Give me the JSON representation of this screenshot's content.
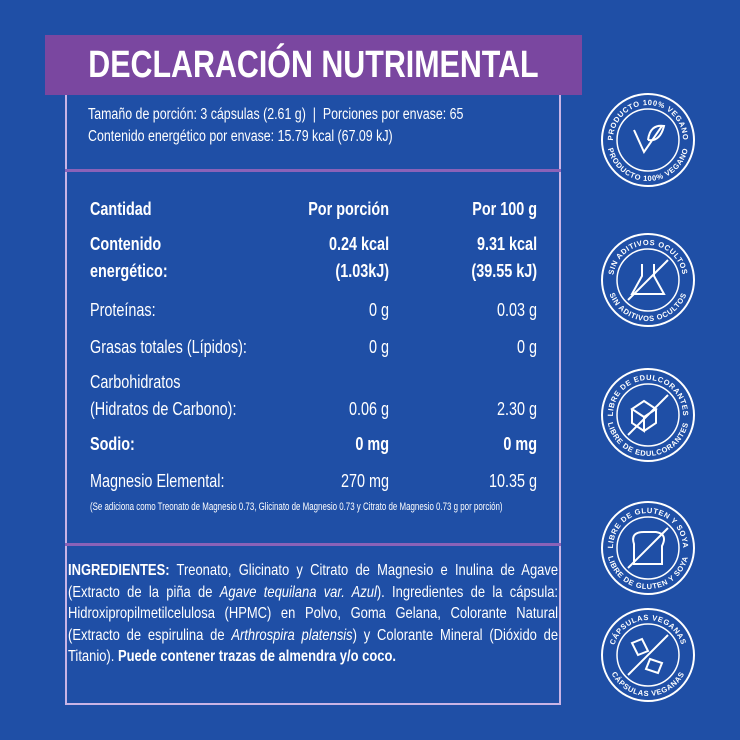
{
  "header": {
    "title": "DECLARACIÓN NUTRIMENTAL",
    "serving_line": "Tamaño de porción: 3 cápsulas (2.61 g)  |  Porciones por envase: 65",
    "energy_line": "Contenido energético por envase: 15.79 kcal (67.09 kJ)"
  },
  "table": {
    "columns": [
      "Cantidad",
      "Por porción",
      "Por 100 g"
    ],
    "rows": [
      {
        "label": [
          "Contenido",
          "energético:"
        ],
        "per_serving": [
          "0.24 kcal",
          "(1.03kJ)"
        ],
        "per_100g": [
          "9.31 kcal",
          "(39.55 kJ)"
        ],
        "bold": true
      },
      {
        "label": [
          "Proteínas:"
        ],
        "per_serving": [
          "0 g"
        ],
        "per_100g": [
          "0.03 g"
        ],
        "bold": false
      },
      {
        "label": [
          "Grasas totales (Lípidos):"
        ],
        "per_serving": [
          "0 g"
        ],
        "per_100g": [
          "0 g"
        ],
        "bold": false
      },
      {
        "label": [
          "Carbohidratos",
          "(Hidratos de Carbono):"
        ],
        "per_serving": [
          "0.06 g"
        ],
        "per_100g": [
          "2.30 g"
        ],
        "bold": false
      },
      {
        "label": [
          "Sodio:"
        ],
        "per_serving": [
          "0 mg"
        ],
        "per_100g": [
          "0 mg"
        ],
        "bold": true
      },
      {
        "label": [
          "Magnesio Elemental:"
        ],
        "per_serving": [
          "270 mg"
        ],
        "per_100g": [
          "10.35 g"
        ],
        "bold": false
      }
    ],
    "note": "(Se adiciona como Treonato de Magnesio 0.73, Glicinato de Magnesio 0.73 y Citrato de Magnesio 0.73 g por porción)"
  },
  "ingredients": {
    "lines": [
      [
        {
          "text": "INGREDIENTES:",
          "style": "bold"
        },
        {
          "text": " Treonato, Glicinato y Citrato de Magnesio e Inulina de Agave",
          "style": "normal"
        }
      ],
      [
        {
          "text": "(Extracto de la piña de ",
          "style": "normal"
        },
        {
          "text": "Agave tequilana var. Azul",
          "style": "italic"
        },
        {
          "text": "). Ingredientes de la cápsula:",
          "style": "normal"
        }
      ],
      [
        {
          "text": "Hidroxipropilmetilcelulosa (HPMC) en Polvo, Goma Gelana, Colorante Natural",
          "style": "normal"
        }
      ],
      [
        {
          "text": "(Extracto de espirulina de ",
          "style": "normal"
        },
        {
          "text": "Arthrospira platensis",
          "style": "italic"
        },
        {
          "text": ") y Colorante Mineral (Dióxido de",
          "style": "normal"
        }
      ],
      [
        {
          "text": "Titanio). ",
          "style": "normal"
        },
        {
          "text": "Puede contener trazas de almendra y/o coco.",
          "style": "bold"
        }
      ]
    ]
  },
  "badges": [
    "PRODUCTO 100% VEGANO",
    "SIN ADITIVOS OCULTOS",
    "LIBRE DE EDULCORANTES",
    "LIBRE DE GLUTEN Y SOYA",
    "CÁPSULAS VEGANAS"
  ]
}
